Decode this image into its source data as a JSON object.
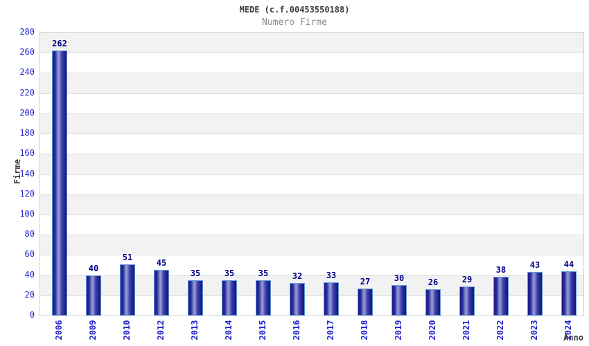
{
  "header": {
    "title": "MEDE (c.f.00453550188)",
    "subtitle": "Numero Firme"
  },
  "chart_data": {
    "type": "bar",
    "title": "MEDE (c.f.00453550188)",
    "subtitle": "Numero Firme",
    "xlabel": "Anno",
    "ylabel": "Firme",
    "categories": [
      "2006",
      "2009",
      "2010",
      "2012",
      "2013",
      "2014",
      "2015",
      "2016",
      "2017",
      "2018",
      "2019",
      "2020",
      "2021",
      "2022",
      "2023",
      "2024"
    ],
    "values": [
      262,
      40,
      51,
      45,
      35,
      35,
      35,
      32,
      33,
      27,
      30,
      26,
      29,
      38,
      43,
      44
    ],
    "ylim": [
      0,
      280
    ],
    "ytick_step": 20,
    "grid": true,
    "legend_position": "none",
    "colors": {
      "bar_dark": "#1a1a88",
      "bar_light": "#98a2d8",
      "bar_border": "#5b9bd5",
      "tick_label": "#2222cc",
      "value_label": "#00008b",
      "band_fill": "#f2f2f2",
      "gridline": "#dcdcdc",
      "title": "#3b3b3b",
      "subtitle": "#8a8a8a"
    }
  }
}
